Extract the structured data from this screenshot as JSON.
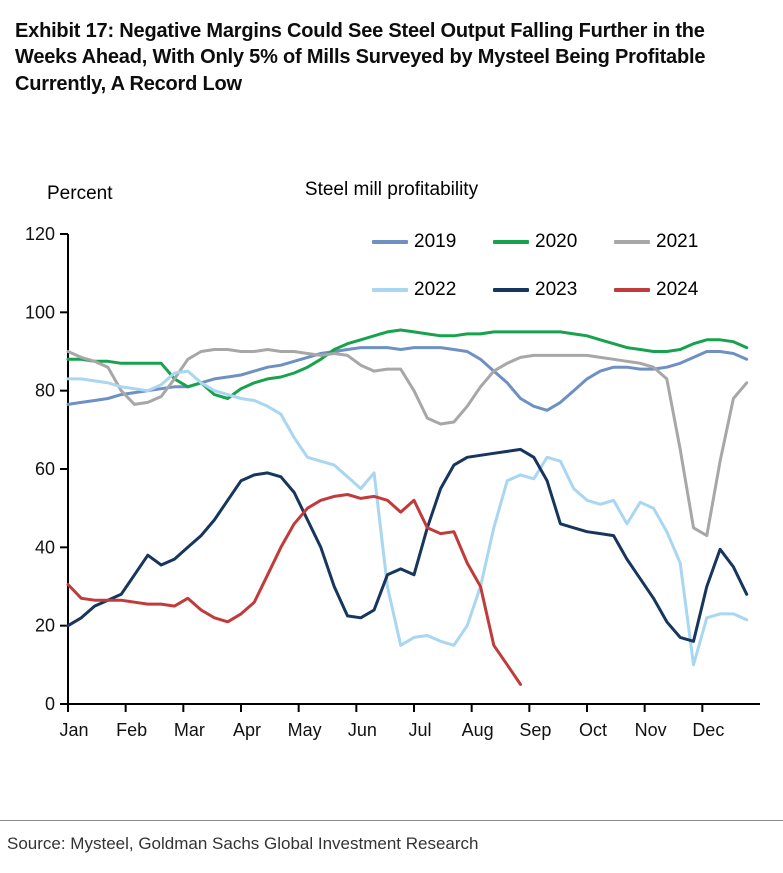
{
  "page": {
    "exhibit_title": "Exhibit 17: Negative Margins Could See Steel Output Falling Further in the Weeks Ahead, With Only 5% of Mills Surveyed by Mysteel Being Profitable Currently, A Record Low",
    "source": "Source: Mysteel, Goldman Sachs Global Investment Research"
  },
  "chart_data": {
    "type": "line",
    "title": "Steel mill profitability",
    "ylabel": "Percent",
    "xlabel": "",
    "ylim": [
      0,
      120
    ],
    "yticks": [
      0,
      20,
      40,
      60,
      80,
      100,
      120
    ],
    "grid": false,
    "legend_position": "top-right-inside",
    "x_unit": "week-of-year",
    "weeks_per_year": 52,
    "months": [
      "Jan",
      "Feb",
      "Mar",
      "Apr",
      "May",
      "Jun",
      "Jul",
      "Aug",
      "Sep",
      "Oct",
      "Nov",
      "Dec"
    ],
    "series": [
      {
        "name": "2019",
        "color": "#6f90c3",
        "values": [
          76.5,
          77,
          77.5,
          78,
          79,
          79.5,
          80,
          80.5,
          81,
          81,
          82,
          83,
          83.5,
          84,
          85,
          86,
          86.5,
          87.5,
          88.5,
          89.5,
          90,
          90.5,
          91,
          91,
          91,
          90.5,
          91,
          91,
          91,
          90.5,
          90,
          88,
          85,
          82,
          78,
          76,
          75,
          77,
          80,
          83,
          85,
          86,
          86,
          85.5,
          85.5,
          86,
          87,
          88.5,
          90,
          90,
          89.5,
          88
        ]
      },
      {
        "name": "2020",
        "color": "#18a24e",
        "values": [
          88,
          88,
          87.5,
          87.5,
          87,
          87,
          87,
          87,
          83,
          81,
          82,
          79,
          78,
          80.5,
          82,
          83,
          83.5,
          84.5,
          86,
          88,
          90.5,
          92,
          93,
          94,
          95,
          95.5,
          95,
          94.5,
          94,
          94,
          94.5,
          94.5,
          95,
          95,
          95,
          95,
          95,
          95,
          94.5,
          94,
          93,
          92,
          91,
          90.5,
          90,
          90,
          90.5,
          92,
          93,
          93,
          92.5,
          91
        ]
      },
      {
        "name": "2021",
        "color": "#a7a7a7",
        "values": [
          90,
          88.5,
          87.5,
          86,
          80,
          76.5,
          77,
          78.5,
          83,
          88,
          90,
          90.5,
          90.5,
          90,
          90,
          90.5,
          90,
          90,
          89.5,
          89,
          89.5,
          89,
          86.5,
          85,
          85.5,
          85.5,
          80,
          73,
          71.5,
          72,
          76,
          81,
          85,
          87,
          88.5,
          89,
          89,
          89,
          89,
          89,
          88.5,
          88,
          87.5,
          87,
          86,
          83,
          65,
          45,
          43,
          62,
          78,
          82
        ]
      },
      {
        "name": "2022",
        "color": "#a9d6f0",
        "values": [
          83,
          83,
          82.5,
          82,
          81,
          80.5,
          80,
          81.5,
          84.5,
          85,
          82,
          80,
          79,
          78,
          77.5,
          76,
          74,
          68,
          63,
          62,
          61,
          58,
          55,
          59,
          30,
          15,
          17,
          17.5,
          16,
          15,
          20,
          30,
          45,
          57,
          58.5,
          57.5,
          63,
          62,
          55,
          52,
          51,
          52,
          46,
          51.5,
          50,
          44,
          36,
          10,
          22,
          23,
          23,
          21.5
        ]
      },
      {
        "name": "2023",
        "color": "#17365d",
        "values": [
          20,
          22,
          25,
          26.5,
          28,
          33,
          38,
          35.5,
          37,
          40,
          43,
          47,
          52,
          57,
          58.5,
          59,
          58,
          54,
          47,
          40,
          30,
          22.5,
          22,
          24,
          33,
          34.5,
          33,
          45,
          55,
          61,
          63,
          63.5,
          64,
          64.5,
          65,
          63,
          57,
          46,
          45,
          44,
          43.5,
          43,
          37,
          32,
          27,
          21,
          17,
          16,
          30,
          39.5,
          35,
          28
        ]
      },
      {
        "name": "2024",
        "color": "#c23b3b",
        "values": [
          30.5,
          27,
          26.5,
          26.5,
          26.5,
          26,
          25.5,
          25.5,
          25,
          27,
          24,
          22,
          21,
          23,
          26,
          33,
          40,
          46,
          50,
          52,
          53,
          53.5,
          52.5,
          53,
          52,
          49,
          52,
          45,
          43.5,
          44,
          36,
          30,
          15,
          10,
          5
        ]
      }
    ]
  }
}
